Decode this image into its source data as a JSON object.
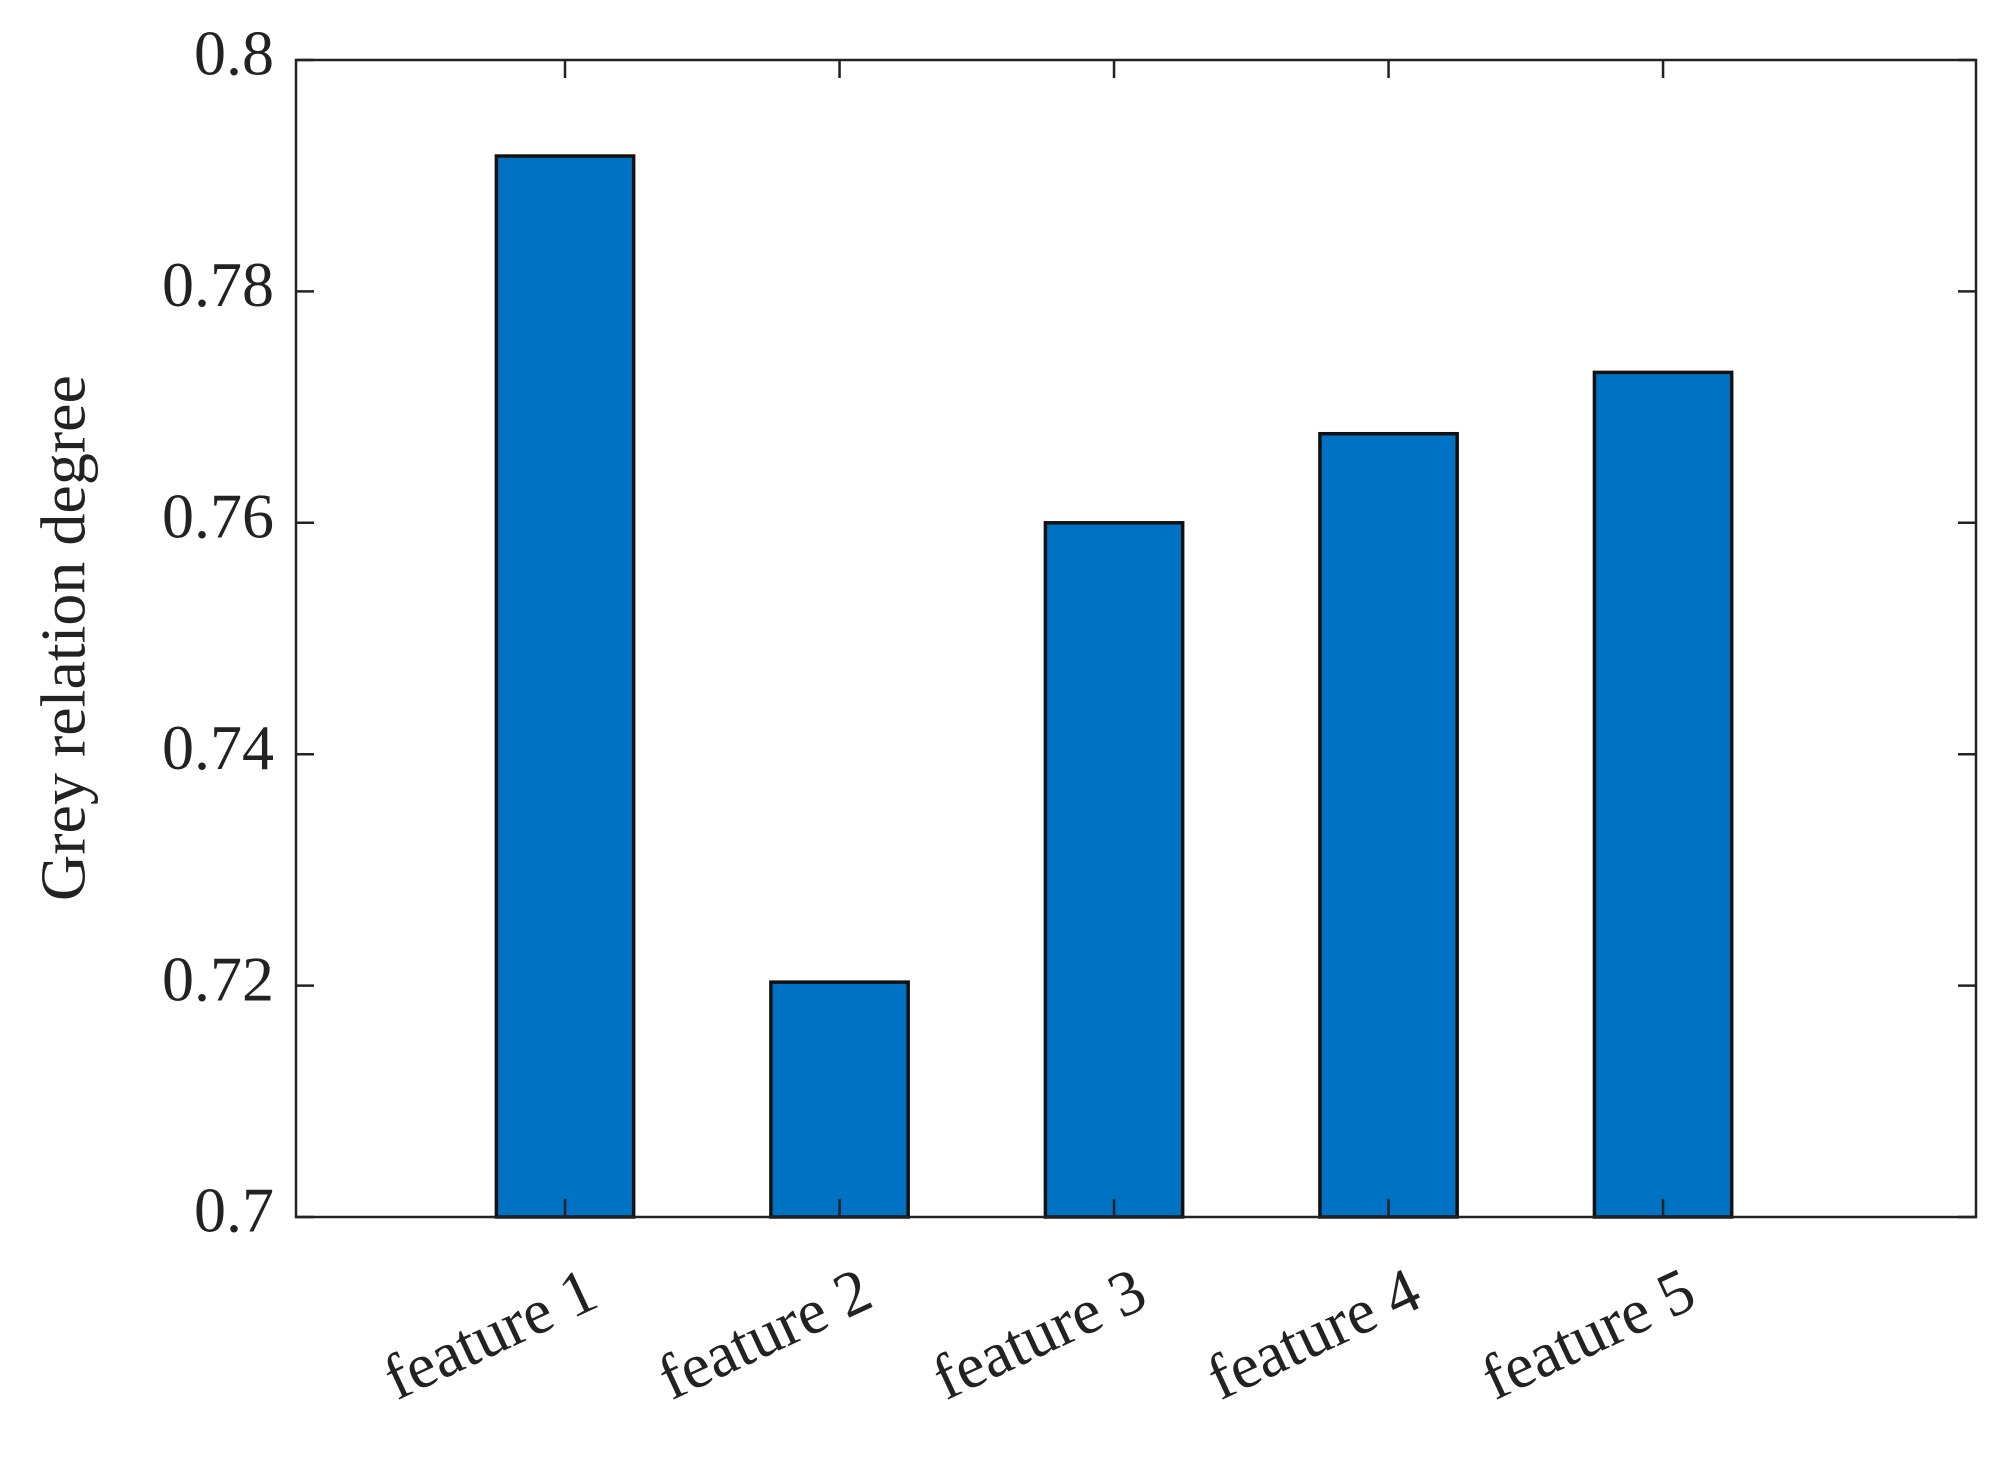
{
  "chart_data": {
    "type": "bar",
    "y_label": "Grey relation degree",
    "categories": [
      "feature 1",
      "feature 2",
      "feature 3",
      "feature 4",
      "feature 5"
    ],
    "values": [
      0.7917,
      0.7203,
      0.76,
      0.7677,
      0.773
    ],
    "color": "#0072c4",
    "ylim": [
      0.7,
      0.8
    ],
    "yticks": [
      0.7,
      0.72,
      0.74,
      0.76,
      0.78,
      0.8
    ],
    "grid": false
  }
}
